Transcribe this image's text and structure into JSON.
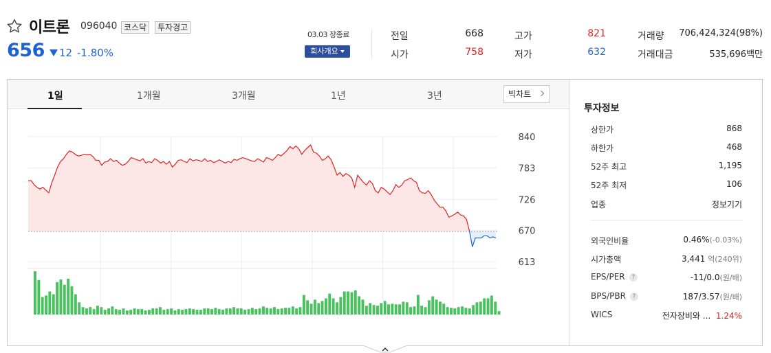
{
  "stock": {
    "name": "이트론",
    "code": "096040",
    "market_tag": "코스닥",
    "warning_tag": "투자경고",
    "price": "656",
    "change": "12",
    "change_pct": "-1.80%",
    "direction": "down",
    "status": "03.03 장종료",
    "company_button": "회사개요"
  },
  "quote": [
    {
      "label": "전일",
      "value": "668"
    },
    {
      "label": "고가",
      "value": "821"
    },
    {
      "label": "거래량",
      "value": "706,424,324(98%)"
    },
    {
      "label": "시가",
      "value": "758"
    },
    {
      "label": "저가",
      "value": "632"
    },
    {
      "label": "거래대금",
      "value": "535,696백만"
    }
  ],
  "tabs": [
    "1일",
    "1개월",
    "3개월",
    "1년",
    "3년"
  ],
  "active_tab": "1일",
  "bigchart_label": "빅차트",
  "chart_data": {
    "type": "line",
    "reference_price": 668,
    "y_ticks": [
      840,
      783,
      726,
      670,
      613
    ],
    "ylim": [
      613,
      840
    ],
    "x_ticks": [
      "10",
      "11",
      "12",
      "13",
      "14",
      "15"
    ],
    "price_series": [
      760,
      760,
      753,
      748,
      745,
      748,
      743,
      738,
      756,
      770,
      785,
      795,
      800,
      808,
      814,
      812,
      808,
      805,
      806,
      808,
      807,
      808,
      804,
      797,
      797,
      788,
      794,
      795,
      800,
      795,
      797,
      792,
      788,
      790,
      795,
      802,
      800,
      798,
      796,
      800,
      792,
      795,
      793,
      800,
      797,
      792,
      795,
      790,
      795,
      785,
      790,
      797,
      798,
      795,
      793,
      800,
      796,
      798,
      797,
      795,
      800,
      795,
      797,
      793,
      795,
      798,
      795,
      792,
      795,
      793,
      799,
      797,
      800,
      802,
      800,
      798,
      796,
      795,
      800,
      797,
      794,
      802,
      800,
      797,
      802,
      808,
      805,
      810,
      815,
      822,
      818,
      823,
      818,
      808,
      815,
      820,
      825,
      812,
      810,
      805,
      797,
      800,
      805,
      798,
      785,
      770,
      775,
      768,
      773,
      770,
      765,
      748,
      770,
      763,
      757,
      752,
      760,
      755,
      742,
      738,
      748,
      745,
      740,
      735,
      742,
      753,
      748,
      752,
      760,
      762,
      765,
      760,
      757,
      742,
      738,
      737,
      742,
      735,
      725,
      718,
      712,
      712,
      705,
      694,
      696,
      699,
      703,
      698,
      696,
      690,
      669,
      640,
      656,
      656,
      656,
      660,
      660,
      656,
      658,
      656
    ],
    "volume_series": [
      64,
      51,
      26,
      28,
      34,
      30,
      48,
      52,
      44,
      53,
      42,
      30,
      18,
      11,
      9,
      11,
      8,
      13,
      11,
      7,
      9,
      12,
      8,
      7,
      9,
      6,
      7,
      9,
      8,
      8,
      6,
      7,
      9,
      9,
      11,
      7,
      8,
      9,
      6,
      8,
      7,
      8,
      9,
      8,
      7,
      7,
      9,
      9,
      8,
      10,
      8,
      7,
      9,
      9,
      11,
      9,
      9,
      7,
      8,
      10,
      8,
      9,
      12,
      10,
      9,
      11,
      8,
      9,
      10,
      10,
      12,
      9,
      11,
      29,
      21,
      16,
      22,
      17,
      20,
      24,
      31,
      24,
      18,
      26,
      34,
      34,
      33,
      36,
      27,
      22,
      13,
      17,
      14,
      13,
      17,
      20,
      15,
      16,
      15,
      15,
      19,
      18,
      11,
      12,
      29,
      13,
      11,
      21,
      27,
      22,
      19,
      16,
      11,
      10,
      9,
      11,
      12,
      10,
      9,
      14,
      18,
      19,
      24,
      24,
      28,
      19,
      5
    ]
  },
  "info": {
    "title": "투자정보",
    "rows": [
      {
        "label": "상한가",
        "value": "868"
      },
      {
        "label": "하한가",
        "value": "468"
      },
      {
        "label": "52주 최고",
        "value": "1,195"
      },
      {
        "label": "52주 최저",
        "value": "106"
      },
      {
        "label": "업종",
        "value": "정보기기"
      }
    ],
    "rows2": [
      {
        "label": "외국인비율",
        "value": "0.46%",
        "sub": "(-0.03%)"
      },
      {
        "label": "시가총액",
        "value": "3,441",
        "sub": "억(240위)"
      },
      {
        "label": "EPS/PER",
        "value": "-11/0.0",
        "sub": "(원/배)"
      },
      {
        "label": "BPS/PBR",
        "value": "187/3.57",
        "sub": "(원/배)"
      },
      {
        "label": "WICS",
        "value": "전자장비와 ...",
        "sub": "1.24%"
      }
    ]
  },
  "colors": {
    "up": "#e0211f",
    "down": "#1f63d1",
    "volume": "#48c25d",
    "fill_up": "#fde6e6",
    "fill_down": "#e3effc"
  },
  "icons": {
    "favorite": "star-outline-icon",
    "caret": "caret-down-icon",
    "chevron": "chevron-right-icon",
    "collapse": "chevron-up-icon",
    "help": "question-icon"
  }
}
